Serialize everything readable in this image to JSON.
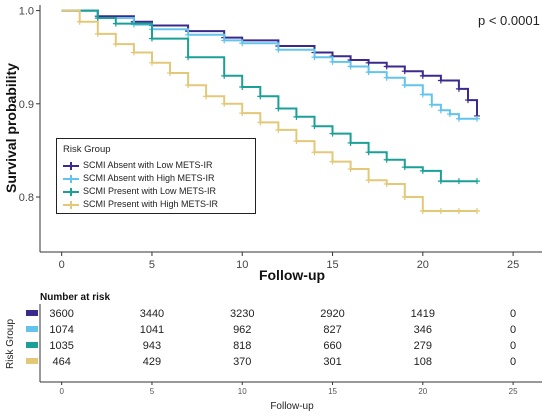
{
  "chart_data": [
    {
      "type": "line",
      "subtype": "kaplan-meier",
      "title": "",
      "xlabel": "Follow-up",
      "ylabel": "Survival probability",
      "xlim": [
        -1.2,
        26.6
      ],
      "ylim": [
        0.741,
        1.006
      ],
      "x_ticks": [
        0,
        5,
        10,
        15,
        20,
        25
      ],
      "y_ticks": [
        0.8,
        0.9,
        1.0
      ],
      "y_tick_labels": [
        "0.8",
        "0.9",
        "1.0"
      ],
      "annotation": "p < 0.0001",
      "legend_title": "Risk Group",
      "legend_position": "left",
      "grid": false,
      "series": [
        {
          "name": "SCMI Absent with Low METS-IR",
          "color": "#3b2a8c",
          "x": [
            0,
            2,
            4,
            5,
            7,
            9,
            10,
            12,
            14,
            15,
            16,
            17,
            18,
            19,
            20,
            21,
            22,
            22.5,
            23
          ],
          "y": [
            1.0,
            0.994,
            0.988,
            0.984,
            0.978,
            0.971,
            0.968,
            0.962,
            0.955,
            0.951,
            0.947,
            0.944,
            0.94,
            0.935,
            0.93,
            0.925,
            0.916,
            0.904,
            0.887
          ]
        },
        {
          "name": "SCMI Absent with High METS-IR",
          "color": "#62c4ec",
          "x": [
            0,
            2,
            4,
            5,
            7,
            9,
            10,
            12,
            14,
            15,
            16,
            17,
            18,
            19,
            20,
            20.5,
            21,
            21.5,
            22,
            23
          ],
          "y": [
            1.0,
            0.992,
            0.985,
            0.98,
            0.974,
            0.968,
            0.965,
            0.958,
            0.95,
            0.945,
            0.94,
            0.934,
            0.928,
            0.92,
            0.91,
            0.899,
            0.893,
            0.889,
            0.884,
            0.884
          ]
        },
        {
          "name": "SCMI Present with Low METS-IR",
          "color": "#1aa096",
          "x": [
            0,
            2,
            3,
            5,
            7,
            9,
            10,
            11,
            12,
            13,
            14,
            15,
            16,
            17,
            18,
            19,
            20,
            21,
            22,
            23
          ],
          "y": [
            1.0,
            0.992,
            0.986,
            0.97,
            0.95,
            0.93,
            0.918,
            0.908,
            0.895,
            0.886,
            0.876,
            0.868,
            0.858,
            0.848,
            0.84,
            0.832,
            0.828,
            0.817,
            0.817,
            0.817
          ]
        },
        {
          "name": "SCMI Present with High METS-IR",
          "color": "#e3c878",
          "x": [
            0,
            1,
            2,
            3,
            4,
            5,
            6,
            7,
            8,
            9,
            10,
            11,
            12,
            13,
            14,
            15,
            16,
            17,
            18,
            19,
            20,
            21,
            22,
            23
          ],
          "y": [
            1.0,
            0.988,
            0.975,
            0.964,
            0.955,
            0.944,
            0.933,
            0.92,
            0.908,
            0.9,
            0.89,
            0.88,
            0.872,
            0.86,
            0.848,
            0.838,
            0.83,
            0.818,
            0.814,
            0.8,
            0.785,
            0.785,
            0.785,
            0.785
          ]
        }
      ]
    },
    {
      "type": "table",
      "title": "Number at risk",
      "ylabel": "Risk Group",
      "xlabel": "Follow-up",
      "x_ticks": [
        0,
        5,
        10,
        15,
        20,
        25
      ],
      "columns": [
        0,
        5,
        10,
        15,
        20,
        25
      ],
      "rows": [
        {
          "color": "#3b2a8c",
          "values": [
            "3600",
            "3440",
            "3230",
            "2920",
            "1419",
            "0"
          ]
        },
        {
          "color": "#62c4ec",
          "values": [
            "1074",
            "1041",
            "962",
            "827",
            "346",
            "0"
          ]
        },
        {
          "color": "#1aa096",
          "values": [
            "1035",
            "943",
            "818",
            "660",
            "279",
            "0"
          ]
        },
        {
          "color": "#e3c878",
          "values": [
            "464",
            "429",
            "370",
            "301",
            "108",
            "0"
          ]
        }
      ]
    }
  ]
}
